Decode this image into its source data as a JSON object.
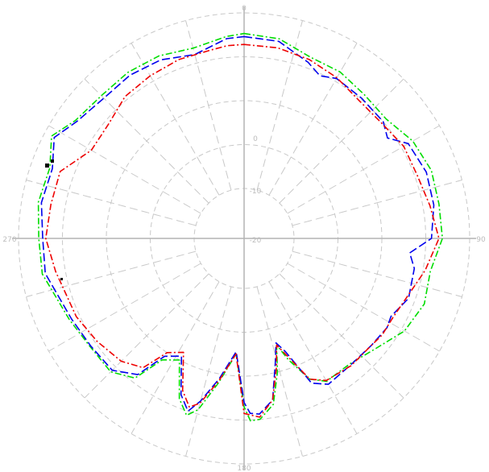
{
  "chart_data": {
    "type": "polar-line",
    "title": "",
    "angle_labels": [
      "0",
      "90",
      "180",
      "270"
    ],
    "radial_tick_labels": [
      "-20",
      "-10",
      "0"
    ],
    "radial_range": [
      -30,
      10
    ],
    "radial_rings": [
      -30,
      -20,
      -10,
      0,
      10
    ],
    "angle_step_deg": 15,
    "grid": true,
    "legend": "none",
    "series": [
      {
        "color": "#00dd00",
        "style": "dash-dot",
        "points": [
          [
            0,
            5.3
          ],
          [
            10,
            4.8
          ],
          [
            20,
            2.6
          ],
          [
            30,
            2.4
          ],
          [
            40,
            1.3
          ],
          [
            50,
            0.9
          ],
          [
            60,
            3.0
          ],
          [
            70,
            4.0
          ],
          [
            80,
            3.7
          ],
          [
            90,
            3.8
          ],
          [
            100,
            1.7
          ],
          [
            110,
            2.3
          ],
          [
            120,
            0.8
          ],
          [
            130,
            -2.3
          ],
          [
            140,
            -4.0
          ],
          [
            150,
            -3.8
          ],
          [
            155,
            -6.0
          ],
          [
            160,
            -12.0
          ],
          [
            163,
            -16.0
          ],
          [
            166,
            -10.0
          ],
          [
            170,
            -3.0
          ],
          [
            175,
            0.0
          ],
          [
            178,
            0.2
          ],
          [
            180,
            -3.0
          ],
          [
            184,
            -15.0
          ],
          [
            190,
            -8.0
          ],
          [
            195,
            -1.0
          ],
          [
            198,
            1.0
          ],
          [
            202,
            -2.0
          ],
          [
            208,
            -10.0
          ],
          [
            214,
            -8.0
          ],
          [
            218,
            -1.0
          ],
          [
            225,
            1.6
          ],
          [
            235,
            1.5
          ],
          [
            245,
            2.5
          ],
          [
            260,
            5.3
          ],
          [
            270,
            5.4
          ],
          [
            280,
            6.2
          ],
          [
            290,
            5.7
          ],
          [
            298,
            8.3
          ],
          [
            305,
            5.5
          ],
          [
            315,
            4.6
          ],
          [
            325,
            4.8
          ],
          [
            335,
            4.5
          ],
          [
            345,
            3.5
          ],
          [
            355,
            4.8
          ]
        ]
      },
      {
        "color": "#0000ee",
        "style": "dash",
        "points": [
          [
            0,
            4.6
          ],
          [
            10,
            4.2
          ],
          [
            20,
            1.3
          ],
          [
            25,
            -0.5
          ],
          [
            30,
            0.7
          ],
          [
            40,
            0.3
          ],
          [
            50,
            0.0
          ],
          [
            55,
            -1.5
          ],
          [
            60,
            1.8
          ],
          [
            70,
            2.8
          ],
          [
            80,
            2.5
          ],
          [
            90,
            1.3
          ],
          [
            95,
            -3.5
          ],
          [
            100,
            -2.0
          ],
          [
            110,
            -1.5
          ],
          [
            118,
            -3.5
          ],
          [
            122,
            -3.0
          ],
          [
            130,
            -3.5
          ],
          [
            140,
            -3.7
          ],
          [
            150,
            -3.0
          ],
          [
            155,
            -5.0
          ],
          [
            160,
            -14.0
          ],
          [
            163,
            -16.5
          ],
          [
            166,
            -12.0
          ],
          [
            170,
            -4.0
          ],
          [
            175,
            -1.2
          ],
          [
            178,
            -1.5
          ],
          [
            180,
            -4.0
          ],
          [
            184,
            -15.5
          ],
          [
            190,
            -9.0
          ],
          [
            195,
            -3.0
          ],
          [
            198,
            0.0
          ],
          [
            202,
            -3.0
          ],
          [
            208,
            -11.0
          ],
          [
            214,
            -9.0
          ],
          [
            218,
            -2.0
          ],
          [
            225,
            1.1
          ],
          [
            235,
            1.3
          ],
          [
            245,
            2.0
          ],
          [
            260,
            4.6
          ],
          [
            270,
            4.5
          ],
          [
            280,
            5.5
          ],
          [
            290,
            5.1
          ],
          [
            298,
            7.6
          ],
          [
            305,
            5.1
          ],
          [
            315,
            3.8
          ],
          [
            325,
            4.0
          ],
          [
            335,
            3.5
          ],
          [
            345,
            2.0
          ],
          [
            355,
            4.3
          ]
        ]
      },
      {
        "color": "#ee0000",
        "style": "dash-dot",
        "points": [
          [
            0,
            2.8
          ],
          [
            10,
            2.7
          ],
          [
            20,
            2.0
          ],
          [
            30,
            0.9
          ],
          [
            40,
            -0.5
          ],
          [
            50,
            -0.5
          ],
          [
            60,
            0.6
          ],
          [
            70,
            0.6
          ],
          [
            80,
            1.6
          ],
          [
            90,
            3.0
          ],
          [
            100,
            0.5
          ],
          [
            110,
            -2.0
          ],
          [
            118,
            -3.0
          ],
          [
            125,
            -3.0
          ],
          [
            130,
            -3.5
          ],
          [
            140,
            -3.5
          ],
          [
            150,
            -4.0
          ],
          [
            155,
            -6.0
          ],
          [
            160,
            -13.0
          ],
          [
            163,
            -16.0
          ],
          [
            166,
            -11.0
          ],
          [
            170,
            -4.0
          ],
          [
            175,
            -0.5
          ],
          [
            180,
            -1.5
          ],
          [
            184,
            -15.0
          ],
          [
            190,
            -8.5
          ],
          [
            195,
            -2.5
          ],
          [
            198,
            -1.0
          ],
          [
            202,
            -4.0
          ],
          [
            208,
            -12.0
          ],
          [
            214,
            -10.0
          ],
          [
            218,
            -4.0
          ],
          [
            225,
            -1.8
          ],
          [
            235,
            -0.5
          ],
          [
            245,
            0.8
          ],
          [
            260,
            2.2
          ],
          [
            270,
            3.8
          ],
          [
            280,
            3.3
          ],
          [
            290,
            3.2
          ],
          [
            300,
            -1.2
          ],
          [
            310,
            -1.0
          ],
          [
            320,
            0.8
          ],
          [
            330,
            1.4
          ],
          [
            340,
            2.0
          ],
          [
            350,
            2.2
          ],
          [
            355,
            2.7
          ]
        ]
      }
    ]
  }
}
